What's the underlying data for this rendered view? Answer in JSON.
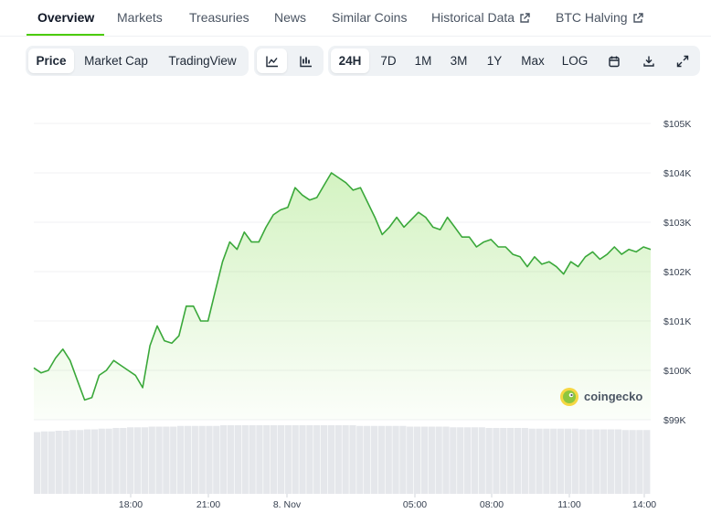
{
  "tabs": [
    {
      "label": "Overview",
      "active": true,
      "external": false
    },
    {
      "label": "Markets",
      "active": false,
      "external": false
    },
    {
      "label": "Treasuries",
      "active": false,
      "external": false
    },
    {
      "label": "News",
      "active": false,
      "external": false
    },
    {
      "label": "Similar Coins",
      "active": false,
      "external": false
    },
    {
      "label": "Historical Data",
      "active": false,
      "external": true
    },
    {
      "label": "BTC Halving",
      "active": false,
      "external": true
    }
  ],
  "chart_type_toggle": [
    {
      "label": "Price",
      "selected": true
    },
    {
      "label": "Market Cap",
      "selected": false
    },
    {
      "label": "TradingView",
      "selected": false
    }
  ],
  "view_icons": [
    "line-chart-icon",
    "candlestick-chart-icon"
  ],
  "ranges": [
    {
      "label": "24H",
      "selected": true
    },
    {
      "label": "7D",
      "selected": false
    },
    {
      "label": "1M",
      "selected": false
    },
    {
      "label": "3M",
      "selected": false
    },
    {
      "label": "1Y",
      "selected": false
    },
    {
      "label": "Max",
      "selected": false
    },
    {
      "label": "LOG",
      "selected": false
    }
  ],
  "tool_icons": [
    "calendar-icon",
    "download-icon",
    "expand-icon"
  ],
  "brand": {
    "text": "coingecko"
  },
  "colors": {
    "accent": "#4bcc00",
    "line": "#3aa83a",
    "volume": "#e5e7eb"
  },
  "chart_data": {
    "type": "area",
    "title": "",
    "xlabel": "",
    "ylabel": "",
    "x_ticks": [
      "18:00",
      "21:00",
      "8. Nov",
      "05:00",
      "08:00",
      "11:00",
      "14:00"
    ],
    "y_ticks": [
      "$99K",
      "$100K",
      "$101K",
      "$102K",
      "$103K",
      "$104K",
      "$105K"
    ],
    "ylim": [
      99000,
      105000
    ],
    "grid": true,
    "series": [
      {
        "values": [
          100050,
          99950,
          100000,
          100250,
          100430,
          100200,
          99800,
          99400,
          99450,
          99900,
          100000,
          100200,
          100100,
          100000,
          99900,
          99650,
          100500,
          100900,
          100600,
          100550,
          100700,
          101300,
          101300,
          101000,
          101000,
          101600,
          102200,
          102600,
          102450,
          102800,
          102600,
          102600,
          102900,
          103150,
          103250,
          103300,
          103700,
          103550,
          103450,
          103500,
          103750,
          104000,
          103900,
          103800,
          103650,
          103700,
          103400,
          103100,
          102750,
          102900,
          103100,
          102900,
          103050,
          103200,
          103100,
          102900,
          102850,
          103100,
          102900,
          102700,
          102700,
          102500,
          102600,
          102650,
          102500,
          102500,
          102350,
          102300,
          102100,
          102300,
          102150,
          102200,
          102100,
          101950,
          102200,
          102100,
          102300,
          102400,
          102250,
          102350,
          102500,
          102350,
          102450,
          102400,
          102500,
          102450
        ]
      }
    ],
    "volume": [
      0.9,
      0.91,
      0.91,
      0.92,
      0.92,
      0.93,
      0.93,
      0.94,
      0.94,
      0.95,
      0.95,
      0.96,
      0.96,
      0.97,
      0.97,
      0.97,
      0.98,
      0.98,
      0.98,
      0.98,
      0.99,
      0.99,
      0.99,
      0.99,
      0.99,
      0.99,
      1.0,
      1.0,
      1.0,
      1.0,
      1.0,
      1.0,
      1.0,
      1.0,
      1.0,
      1.0,
      1.0,
      1.0,
      1.0,
      1.0,
      1.0,
      1.0,
      1.0,
      1.0,
      1.0,
      0.99,
      0.99,
      0.99,
      0.99,
      0.99,
      0.99,
      0.99,
      0.98,
      0.98,
      0.98,
      0.98,
      0.98,
      0.98,
      0.97,
      0.97,
      0.97,
      0.97,
      0.97,
      0.96,
      0.96,
      0.96,
      0.96,
      0.96,
      0.96,
      0.95,
      0.95,
      0.95,
      0.95,
      0.95,
      0.95,
      0.95,
      0.94,
      0.94,
      0.94,
      0.94,
      0.94,
      0.94,
      0.93,
      0.93,
      0.93,
      0.93
    ]
  }
}
